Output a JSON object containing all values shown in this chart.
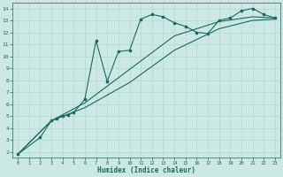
{
  "xlabel": "Humidex (Indice chaleur)",
  "bg_color": "#cbe8e4",
  "line_color": "#1a6b5a",
  "grid_color": "#b0d8d2",
  "xlim": [
    -0.5,
    23.5
  ],
  "ylim": [
    1.5,
    14.5
  ],
  "xticks": [
    0,
    1,
    2,
    3,
    4,
    5,
    6,
    7,
    8,
    9,
    10,
    11,
    12,
    13,
    14,
    15,
    16,
    17,
    18,
    19,
    20,
    21,
    22,
    23
  ],
  "yticks": [
    2,
    3,
    4,
    5,
    6,
    7,
    8,
    9,
    10,
    11,
    12,
    13,
    14
  ],
  "line1_x": [
    0,
    2,
    3,
    3.5,
    4,
    4.5,
    5,
    6,
    7,
    8,
    9,
    10,
    11,
    12,
    13,
    14,
    15,
    16,
    17,
    18,
    19,
    20,
    21,
    22,
    23
  ],
  "line1_y": [
    1.8,
    3.2,
    4.6,
    4.8,
    5.0,
    5.1,
    5.3,
    6.4,
    11.3,
    7.9,
    10.4,
    10.5,
    13.1,
    13.5,
    13.3,
    12.8,
    12.5,
    12.0,
    11.9,
    13.0,
    13.2,
    13.8,
    14.0,
    13.5,
    13.2
  ],
  "line2_x": [
    0,
    3,
    6,
    10,
    14,
    18,
    21,
    23
  ],
  "line2_y": [
    1.8,
    4.6,
    6.1,
    8.9,
    11.7,
    12.9,
    13.3,
    13.2
  ],
  "line3_x": [
    0,
    3,
    6,
    10,
    14,
    18,
    21,
    23
  ],
  "line3_y": [
    1.8,
    4.6,
    5.7,
    7.8,
    10.5,
    12.3,
    13.0,
    13.1
  ]
}
